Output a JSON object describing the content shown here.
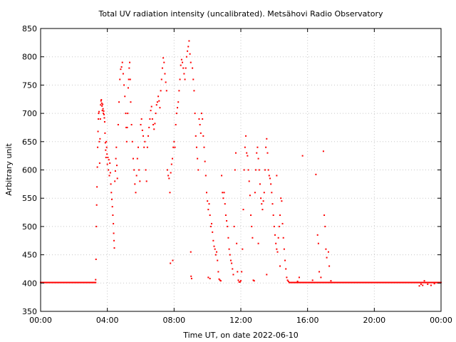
{
  "chart_data": {
    "type": "scatter",
    "title": "Total UV radiation intensity (uncalibrated). Metsähovi Radio Observatory",
    "xlabel": "Time UT, on date 2022-06-10",
    "ylabel": "Arbitrary unit",
    "x_unit": "hours UT",
    "xlim": [
      0,
      24
    ],
    "ylim": [
      350,
      850
    ],
    "x_ticks": [
      {
        "value": 0,
        "label": "00:00"
      },
      {
        "value": 4,
        "label": "04:00"
      },
      {
        "value": 8,
        "label": "08:00"
      },
      {
        "value": 12,
        "label": "12:00"
      },
      {
        "value": 16,
        "label": "16:00"
      },
      {
        "value": 20,
        "label": "20:00"
      },
      {
        "value": 24,
        "label": "00:00"
      }
    ],
    "y_ticks": [
      350,
      400,
      450,
      500,
      550,
      600,
      650,
      700,
      750,
      800,
      850
    ],
    "grid": true,
    "marker_color": "#ff0000",
    "baseline": {
      "value": 401,
      "segments": [
        [
          0,
          3.3
        ],
        [
          14.9,
          24
        ]
      ]
    },
    "points": [
      [
        3.3,
        406
      ],
      [
        3.32,
        442
      ],
      [
        3.34,
        500
      ],
      [
        3.36,
        538
      ],
      [
        3.38,
        570
      ],
      [
        3.4,
        605
      ],
      [
        3.42,
        640
      ],
      [
        3.44,
        668
      ],
      [
        3.46,
        690
      ],
      [
        3.48,
        700
      ],
      [
        3.5,
        703
      ],
      [
        3.52,
        650
      ],
      [
        3.54,
        612
      ],
      [
        3.56,
        655
      ],
      [
        3.58,
        690
      ],
      [
        3.6,
        715
      ],
      [
        3.62,
        722
      ],
      [
        3.64,
        724
      ],
      [
        3.66,
        718
      ],
      [
        3.68,
        713
      ],
      [
        3.7,
        705
      ],
      [
        3.72,
        716
      ],
      [
        3.74,
        708
      ],
      [
        3.76,
        700
      ],
      [
        3.78,
        704
      ],
      [
        3.8,
        698
      ],
      [
        3.82,
        692
      ],
      [
        3.84,
        685
      ],
      [
        3.86,
        665
      ],
      [
        3.88,
        648
      ],
      [
        3.9,
        635
      ],
      [
        3.92,
        622
      ],
      [
        3.94,
        650
      ],
      [
        3.96,
        640
      ],
      [
        3.98,
        628
      ],
      [
        4.0,
        610
      ],
      [
        4.03,
        622
      ],
      [
        4.06,
        600
      ],
      [
        4.09,
        618
      ],
      [
        4.12,
        590
      ],
      [
        4.15,
        612
      ],
      [
        4.18,
        595
      ],
      [
        4.21,
        575
      ],
      [
        4.24,
        560
      ],
      [
        4.27,
        548
      ],
      [
        4.3,
        535
      ],
      [
        4.33,
        520
      ],
      [
        4.36,
        505
      ],
      [
        4.38,
        488
      ],
      [
        4.4,
        475
      ],
      [
        4.42,
        462
      ],
      [
        4.45,
        580
      ],
      [
        4.48,
        598
      ],
      [
        4.51,
        620
      ],
      [
        4.54,
        640
      ],
      [
        4.57,
        608
      ],
      [
        4.6,
        585
      ],
      [
        4.65,
        680
      ],
      [
        4.7,
        720
      ],
      [
        4.75,
        760
      ],
      [
        4.8,
        778
      ],
      [
        4.85,
        782
      ],
      [
        4.9,
        790
      ],
      [
        4.95,
        770
      ],
      [
        5.0,
        750
      ],
      [
        5.05,
        730
      ],
      [
        5.1,
        700
      ],
      [
        5.13,
        675
      ],
      [
        5.16,
        650
      ],
      [
        5.19,
        675
      ],
      [
        5.22,
        700
      ],
      [
        5.25,
        745
      ],
      [
        5.28,
        760
      ],
      [
        5.31,
        780
      ],
      [
        5.34,
        790
      ],
      [
        5.37,
        760
      ],
      [
        5.4,
        720
      ],
      [
        5.45,
        680
      ],
      [
        5.5,
        650
      ],
      [
        5.55,
        620
      ],
      [
        5.6,
        600
      ],
      [
        5.65,
        575
      ],
      [
        5.7,
        560
      ],
      [
        5.75,
        590
      ],
      [
        5.8,
        620
      ],
      [
        5.85,
        640
      ],
      [
        5.9,
        600
      ],
      [
        5.95,
        580
      ],
      [
        6.0,
        680
      ],
      [
        6.05,
        690
      ],
      [
        6.1,
        670
      ],
      [
        6.15,
        660
      ],
      [
        6.2,
        640
      ],
      [
        6.25,
        650
      ],
      [
        6.3,
        600
      ],
      [
        6.35,
        580
      ],
      [
        6.4,
        640
      ],
      [
        6.45,
        660
      ],
      [
        6.5,
        675
      ],
      [
        6.55,
        690
      ],
      [
        6.6,
        705
      ],
      [
        6.65,
        712
      ],
      [
        6.7,
        690
      ],
      [
        6.75,
        680
      ],
      [
        6.8,
        672
      ],
      [
        6.85,
        682
      ],
      [
        6.9,
        700
      ],
      [
        6.95,
        715
      ],
      [
        7.0,
        720
      ],
      [
        7.05,
        730
      ],
      [
        7.1,
        722
      ],
      [
        7.15,
        710
      ],
      [
        7.2,
        740
      ],
      [
        7.25,
        760
      ],
      [
        7.3,
        780
      ],
      [
        7.35,
        798
      ],
      [
        7.4,
        790
      ],
      [
        7.45,
        770
      ],
      [
        7.5,
        755
      ],
      [
        7.55,
        740
      ],
      [
        7.6,
        600
      ],
      [
        7.65,
        590
      ],
      [
        7.7,
        585
      ],
      [
        7.75,
        560
      ],
      [
        7.8,
        595
      ],
      [
        7.85,
        610
      ],
      [
        7.9,
        620
      ],
      [
        7.95,
        640
      ],
      [
        8.0,
        650
      ],
      [
        8.05,
        640
      ],
      [
        7.78,
        435
      ],
      [
        7.92,
        440
      ],
      [
        8.1,
        680
      ],
      [
        8.15,
        700
      ],
      [
        8.2,
        710
      ],
      [
        8.25,
        720
      ],
      [
        8.3,
        740
      ],
      [
        8.35,
        760
      ],
      [
        8.4,
        785
      ],
      [
        8.45,
        795
      ],
      [
        8.5,
        790
      ],
      [
        8.55,
        780
      ],
      [
        8.6,
        770
      ],
      [
        8.65,
        760
      ],
      [
        8.7,
        780
      ],
      [
        8.75,
        800
      ],
      [
        8.8,
        810
      ],
      [
        8.85,
        818
      ],
      [
        8.9,
        828
      ],
      [
        8.95,
        805
      ],
      [
        9.0,
        790
      ],
      [
        9.0,
        455
      ],
      [
        9.02,
        412
      ],
      [
        9.05,
        408
      ],
      [
        9.1,
        780
      ],
      [
        9.15,
        760
      ],
      [
        9.2,
        740
      ],
      [
        9.25,
        700
      ],
      [
        9.3,
        660
      ],
      [
        9.35,
        640
      ],
      [
        9.4,
        620
      ],
      [
        9.45,
        600
      ],
      [
        9.5,
        690
      ],
      [
        9.55,
        680
      ],
      [
        9.6,
        665
      ],
      [
        9.65,
        700
      ],
      [
        9.7,
        690
      ],
      [
        9.75,
        660
      ],
      [
        9.8,
        640
      ],
      [
        9.85,
        615
      ],
      [
        9.9,
        590
      ],
      [
        9.95,
        560
      ],
      [
        10.0,
        545
      ],
      [
        10.05,
        530
      ],
      [
        10.1,
        540
      ],
      [
        10.15,
        520
      ],
      [
        10.2,
        500
      ],
      [
        10.25,
        505
      ],
      [
        10.3,
        490
      ],
      [
        10.35,
        475
      ],
      [
        10.4,
        465
      ],
      [
        10.05,
        410
      ],
      [
        10.15,
        408
      ],
      [
        10.45,
        460
      ],
      [
        10.5,
        450
      ],
      [
        10.55,
        455
      ],
      [
        10.6,
        440
      ],
      [
        10.65,
        420
      ],
      [
        10.7,
        407
      ],
      [
        10.75,
        405
      ],
      [
        10.8,
        404
      ],
      [
        10.85,
        590
      ],
      [
        10.9,
        560
      ],
      [
        10.95,
        550
      ],
      [
        11.0,
        560
      ],
      [
        11.05,
        540
      ],
      [
        11.1,
        520
      ],
      [
        11.15,
        510
      ],
      [
        11.2,
        500
      ],
      [
        11.25,
        480
      ],
      [
        11.3,
        460
      ],
      [
        11.35,
        450
      ],
      [
        11.4,
        440
      ],
      [
        11.45,
        435
      ],
      [
        11.5,
        425
      ],
      [
        11.55,
        415
      ],
      [
        11.6,
        500
      ],
      [
        11.65,
        600
      ],
      [
        11.7,
        630
      ],
      [
        11.75,
        470
      ],
      [
        11.8,
        420
      ],
      [
        11.85,
        405
      ],
      [
        11.9,
        402
      ],
      [
        11.95,
        402
      ],
      [
        12.0,
        404
      ],
      [
        12.05,
        420
      ],
      [
        12.1,
        460
      ],
      [
        12.15,
        530
      ],
      [
        12.2,
        600
      ],
      [
        12.25,
        640
      ],
      [
        12.3,
        660
      ],
      [
        12.35,
        630
      ],
      [
        12.4,
        625
      ],
      [
        12.45,
        600
      ],
      [
        12.5,
        580
      ],
      [
        12.55,
        555
      ],
      [
        12.6,
        520
      ],
      [
        12.65,
        500
      ],
      [
        12.7,
        480
      ],
      [
        12.75,
        405
      ],
      [
        12.8,
        404
      ],
      [
        12.85,
        560
      ],
      [
        12.9,
        600
      ],
      [
        12.95,
        630
      ],
      [
        13.0,
        640
      ],
      [
        13.05,
        620
      ],
      [
        13.1,
        600
      ],
      [
        13.15,
        575
      ],
      [
        13.2,
        550
      ],
      [
        13.25,
        540
      ],
      [
        13.3,
        530
      ],
      [
        13.35,
        545
      ],
      [
        13.4,
        560
      ],
      [
        13.45,
        600
      ],
      [
        13.5,
        640
      ],
      [
        13.55,
        655
      ],
      [
        13.6,
        630
      ],
      [
        13.65,
        600
      ],
      [
        13.7,
        590
      ],
      [
        13.75,
        585
      ],
      [
        13.8,
        575
      ],
      [
        13.85,
        560
      ],
      [
        13.9,
        540
      ],
      [
        13.95,
        520
      ],
      [
        14.0,
        500
      ],
      [
        14.05,
        485
      ],
      [
        14.1,
        470
      ],
      [
        14.15,
        460
      ],
      [
        14.2,
        455
      ],
      [
        14.25,
        480
      ],
      [
        14.3,
        500
      ],
      [
        14.35,
        520
      ],
      [
        14.4,
        550
      ],
      [
        14.45,
        545
      ],
      [
        14.5,
        505
      ],
      [
        14.55,
        480
      ],
      [
        14.6,
        460
      ],
      [
        14.65,
        440
      ],
      [
        14.7,
        425
      ],
      [
        14.75,
        410
      ],
      [
        14.8,
        405
      ],
      [
        14.85,
        403
      ],
      [
        13.05,
        470
      ],
      [
        13.55,
        415
      ],
      [
        14.15,
        590
      ],
      [
        14.35,
        430
      ],
      [
        15.4,
        403
      ],
      [
        15.5,
        410
      ],
      [
        15.7,
        625
      ],
      [
        16.3,
        405
      ],
      [
        16.5,
        592
      ],
      [
        16.6,
        485
      ],
      [
        16.65,
        470
      ],
      [
        16.7,
        420
      ],
      [
        16.8,
        410
      ],
      [
        16.95,
        633
      ],
      [
        17.0,
        520
      ],
      [
        17.05,
        500
      ],
      [
        17.1,
        460
      ],
      [
        17.15,
        445
      ],
      [
        17.25,
        455
      ],
      [
        17.3,
        430
      ],
      [
        17.4,
        404
      ],
      [
        22.7,
        395
      ],
      [
        22.8,
        398
      ],
      [
        22.9,
        396
      ],
      [
        23.0,
        404
      ],
      [
        23.2,
        398
      ],
      [
        23.4,
        396
      ],
      [
        23.6,
        399
      ],
      [
        23.8,
        401
      ]
    ]
  }
}
